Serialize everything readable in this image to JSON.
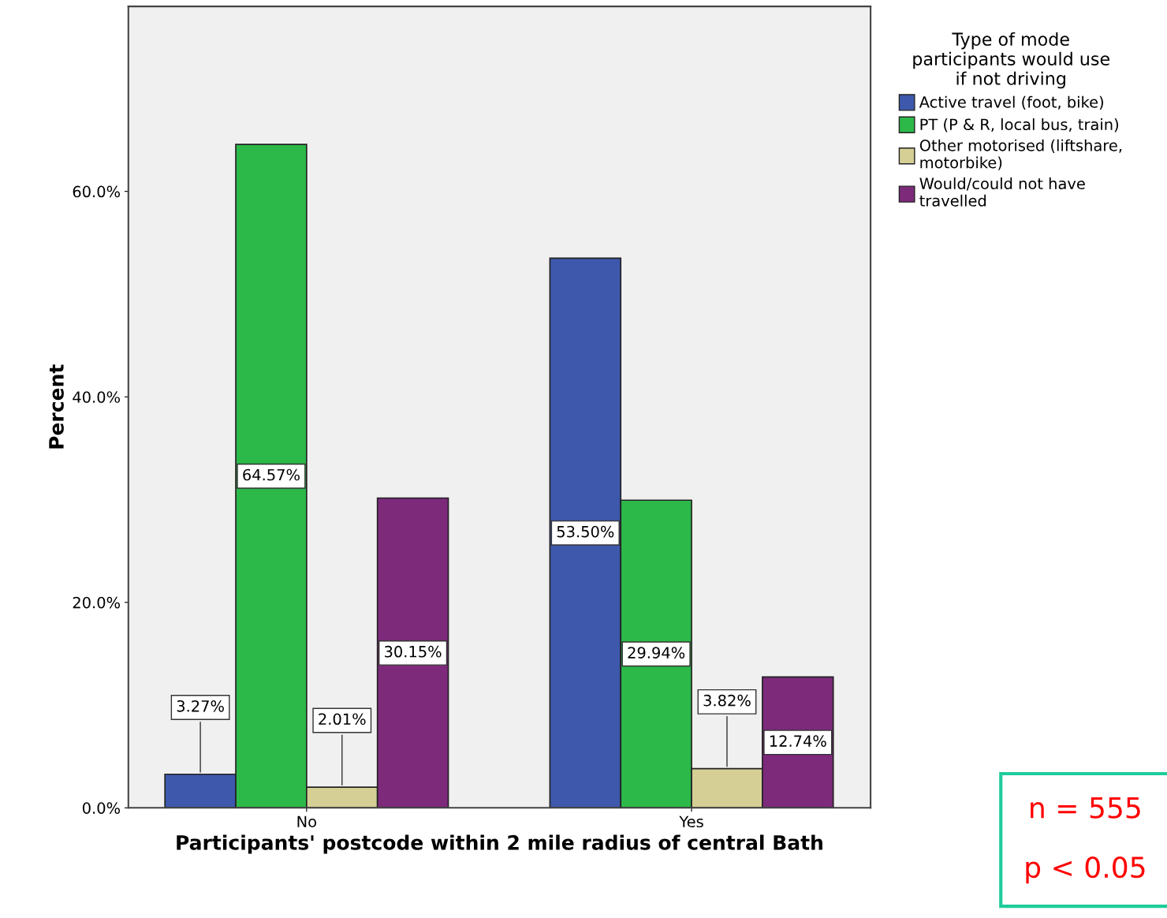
{
  "chart_data": {
    "type": "bar",
    "xlabel": "Participants' postcode within 2 mile radius of central Bath",
    "ylabel": "Percent",
    "legend_title": "Type of mode\nparticipants would use\nif not driving",
    "legend": "top right",
    "categories": [
      "No",
      "Yes"
    ],
    "ylim": [
      0,
      78
    ],
    "yticks": [
      {
        "value": 0,
        "label": "0.0%"
      },
      {
        "value": 20,
        "label": "20.0%"
      },
      {
        "value": 40,
        "label": "40.0%"
      },
      {
        "value": 60,
        "label": "60.0%"
      }
    ],
    "series": [
      {
        "name": "Active travel (foot, bike)",
        "color": "#3e58ac",
        "values": [
          3.27,
          53.5
        ],
        "value_labels": [
          "3.27%",
          "53.50%"
        ]
      },
      {
        "name": "PT (P & R, local bus, train)",
        "color": "#2db84a",
        "values": [
          64.57,
          29.94
        ],
        "value_labels": [
          "64.57%",
          "29.94%"
        ]
      },
      {
        "name": "Other motorised (liftshare,\nmotorbike)",
        "color": "#d5cf95",
        "values": [
          2.01,
          3.82
        ],
        "value_labels": [
          "2.01%",
          "3.82%"
        ]
      },
      {
        "name": "Would/could not have\ntravelled",
        "color": "#7d2a7b",
        "values": [
          30.15,
          12.74
        ],
        "value_labels": [
          "30.15%",
          "12.74%"
        ]
      }
    ],
    "annotations": [
      "n = 555",
      "p < 0.05"
    ]
  }
}
